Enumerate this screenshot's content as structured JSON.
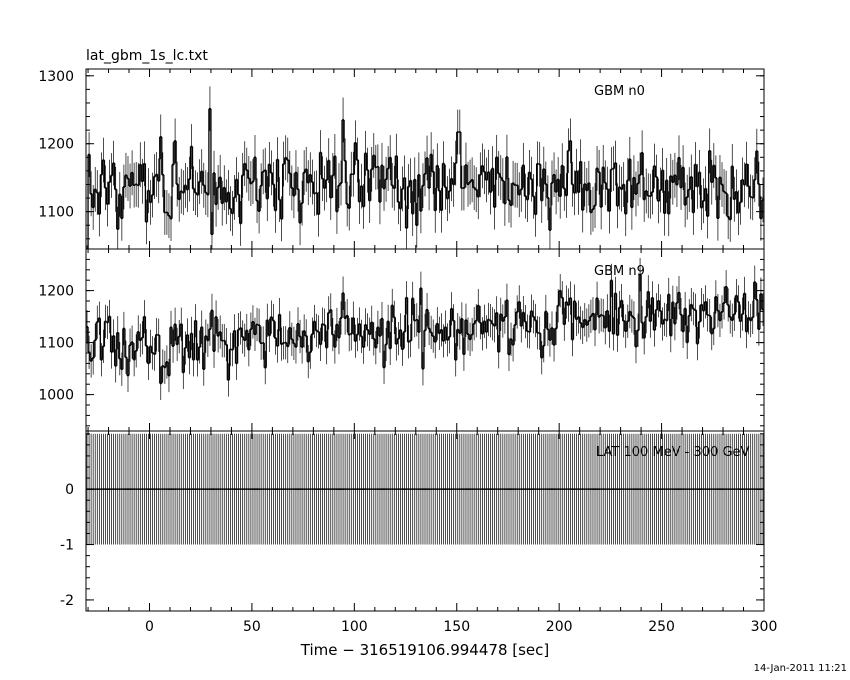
{
  "title": "lat_gbm_1s_lc.txt",
  "timestamp": "14-Jan-2011 11:21",
  "chart_data": [
    {
      "type": "line",
      "series": [
        {
          "name": "GBM n0",
          "seed": 11,
          "base": 1140,
          "trend": 0,
          "noise": 30,
          "err": 33
        }
      ],
      "x": {
        "start": -31,
        "end": 299,
        "step": 1
      },
      "xlim": [
        -31,
        300
      ],
      "ylim": [
        1045,
        1310
      ],
      "yticks": [
        1100,
        1200,
        1300
      ],
      "xticks": [
        0,
        50,
        100,
        150,
        200,
        250,
        300
      ],
      "xlabel": "",
      "ylabel": "",
      "grid": false
    },
    {
      "type": "line",
      "series": [
        {
          "name": "GBM n9",
          "seed": 29,
          "base": 1085,
          "trend": 0.25,
          "noise": 28,
          "err": 32
        }
      ],
      "x": {
        "start": -31,
        "end": 299,
        "step": 1
      },
      "xlim": [
        -31,
        300
      ],
      "ylim": [
        930,
        1280
      ],
      "yticks": [
        1000,
        1100,
        1200
      ],
      "xticks": [
        0,
        50,
        100,
        150,
        200,
        250,
        300
      ],
      "xlabel": "",
      "ylabel": "",
      "grid": false
    },
    {
      "type": "line",
      "series": [
        {
          "name": "LAT 100 MeV - 300 GeV",
          "seed": 0,
          "base": 0,
          "trend": 0,
          "noise": 0,
          "err": 1
        }
      ],
      "x": {
        "start": -31,
        "end": 299,
        "step": 1
      },
      "xlim": [
        -31,
        300
      ],
      "ylim": [
        -2.2,
        1.05
      ],
      "yticks": [
        -2,
        -1,
        0
      ],
      "xticks": [
        0,
        50,
        100,
        150,
        200,
        250,
        300
      ],
      "xlabel": "Time − 316519106.994478 [sec]",
      "ylabel": "",
      "grid": false
    }
  ]
}
